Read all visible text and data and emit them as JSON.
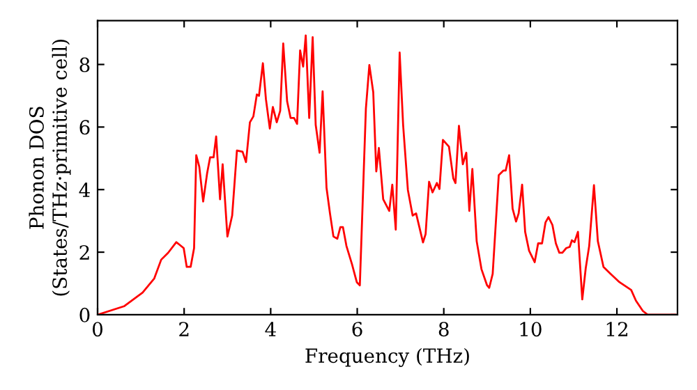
{
  "chart_data": {
    "type": "line",
    "xlabel": "Frequency (THz)",
    "ylabel": "Phonon DOS\n(States/THz·primitive cell)",
    "xlim": [
      0,
      13.4
    ],
    "ylim": [
      0,
      9.4
    ],
    "xticks": [
      0,
      2,
      4,
      6,
      8,
      10,
      12
    ],
    "yticks": [
      0,
      2,
      4,
      6,
      8
    ],
    "grid": false,
    "marker": "none",
    "line_style": "solid",
    "series": [
      {
        "color": "#ff0000",
        "x": [
          0,
          0.61,
          1.04,
          1.31,
          1.47,
          1.63,
          1.82,
          1.99,
          2.06,
          2.15,
          2.23,
          2.28,
          2.35,
          2.44,
          2.53,
          2.6,
          2.68,
          2.74,
          2.83,
          2.89,
          3.0,
          3.11,
          3.22,
          3.35,
          3.43,
          3.52,
          3.6,
          3.68,
          3.73,
          3.82,
          3.89,
          3.98,
          4.05,
          4.14,
          4.22,
          4.29,
          4.38,
          4.46,
          4.54,
          4.61,
          4.68,
          4.75,
          4.81,
          4.89,
          4.97,
          5.04,
          5.13,
          5.2,
          5.29,
          5.37,
          5.45,
          5.54,
          5.61,
          5.67,
          5.75,
          5.88,
          5.99,
          6.06,
          6.2,
          6.28,
          6.37,
          6.44,
          6.5,
          6.6,
          6.74,
          6.81,
          6.89,
          6.98,
          7.06,
          7.17,
          7.28,
          7.36,
          7.52,
          7.58,
          7.66,
          7.74,
          7.84,
          7.9,
          7.98,
          8.12,
          8.22,
          8.27,
          8.35,
          8.44,
          8.52,
          8.59,
          8.66,
          8.76,
          8.87,
          9.0,
          9.05,
          9.13,
          9.27,
          9.38,
          9.43,
          9.51,
          9.59,
          9.67,
          9.73,
          9.81,
          9.88,
          9.97,
          10.1,
          10.18,
          10.27,
          10.35,
          10.42,
          10.51,
          10.59,
          10.67,
          10.74,
          10.83,
          10.91,
          10.96,
          11.02,
          11.1,
          11.2,
          11.28,
          11.36,
          11.47,
          11.56,
          11.69,
          11.85,
          12.06,
          12.33,
          12.44,
          12.6,
          12.71,
          13.35
        ],
        "values": [
          0,
          0.27,
          0.71,
          1.16,
          1.76,
          1.98,
          2.32,
          2.13,
          1.53,
          1.53,
          2.13,
          5.1,
          4.73,
          3.62,
          4.51,
          5.03,
          5.03,
          5.7,
          3.69,
          4.81,
          2.5,
          3.17,
          5.25,
          5.21,
          4.88,
          6.15,
          6.34,
          7.04,
          7.0,
          8.04,
          6.89,
          5.95,
          6.64,
          6.15,
          6.52,
          8.67,
          6.82,
          6.29,
          6.29,
          6.1,
          8.45,
          7.93,
          8.93,
          6.29,
          8.87,
          6.07,
          5.18,
          7.14,
          4.06,
          3.24,
          2.5,
          2.43,
          2.8,
          2.8,
          2.2,
          1.61,
          1.04,
          0.94,
          6.59,
          7.98,
          7.11,
          4.58,
          5.33,
          3.69,
          3.32,
          4.16,
          2.72,
          8.38,
          6.07,
          3.99,
          3.17,
          3.24,
          2.31,
          2.58,
          4.25,
          3.91,
          4.21,
          4.02,
          5.59,
          5.37,
          4.36,
          4.21,
          6.04,
          4.81,
          5.18,
          3.32,
          4.66,
          2.35,
          1.46,
          0.94,
          0.86,
          1.31,
          4.46,
          4.61,
          4.61,
          5.1,
          3.39,
          2.98,
          3.24,
          4.16,
          2.65,
          2.05,
          1.68,
          2.28,
          2.28,
          2.95,
          3.12,
          2.87,
          2.28,
          1.98,
          1.98,
          2.13,
          2.17,
          2.38,
          2.32,
          2.65,
          0.49,
          1.49,
          2.2,
          4.14,
          2.35,
          1.53,
          1.31,
          1.04,
          0.79,
          0.45,
          0.12,
          0,
          0
        ]
      }
    ]
  }
}
